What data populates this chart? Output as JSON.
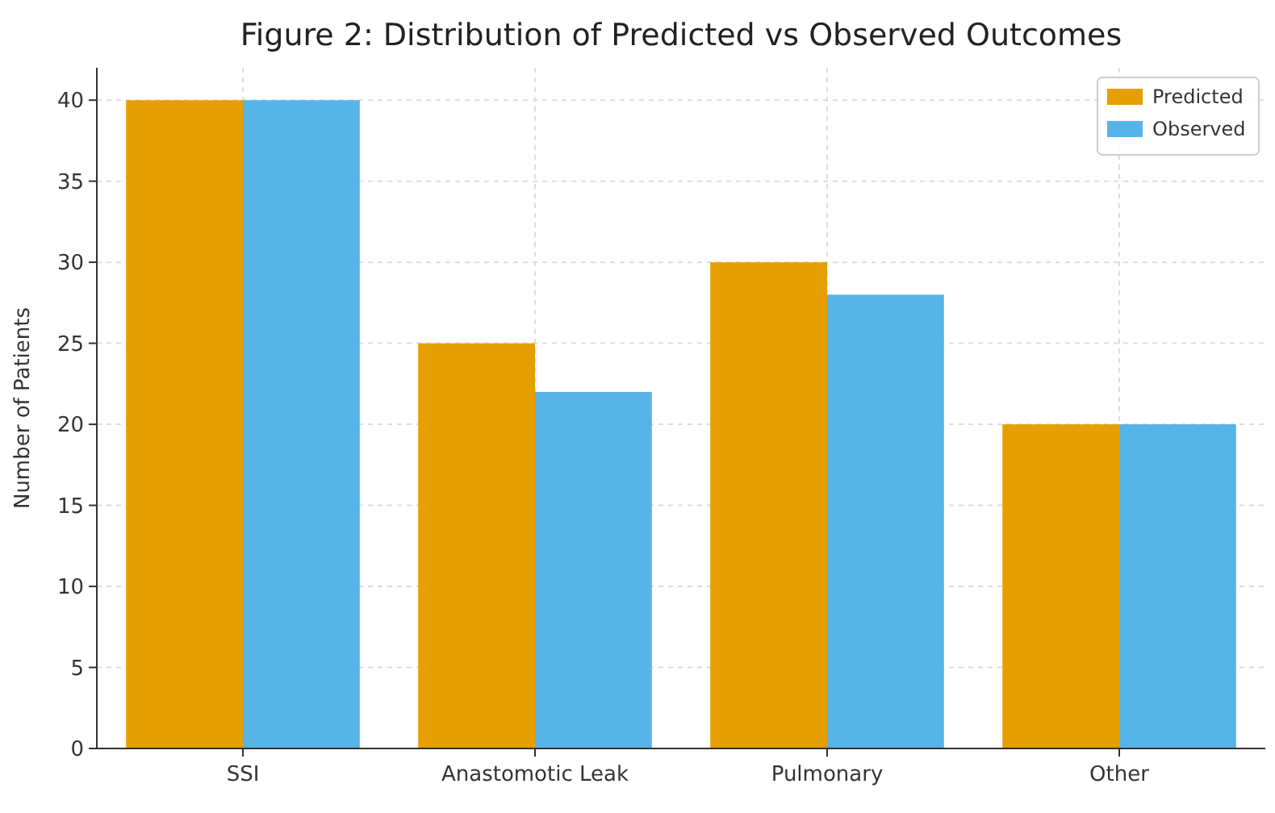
{
  "chart_data": {
    "type": "bar",
    "title": "Figure 2: Distribution of Predicted vs Observed Outcomes",
    "ylabel": "Number of Patients",
    "categories": [
      "SSI",
      "Anastomotic Leak",
      "Pulmonary",
      "Other"
    ],
    "series": [
      {
        "name": "Predicted",
        "color": "#e69f00",
        "values": [
          40,
          25,
          30,
          20
        ]
      },
      {
        "name": "Observed",
        "color": "#56b4e9",
        "values": [
          40,
          22,
          28,
          20
        ]
      }
    ],
    "ylim": [
      0,
      42
    ],
    "yticks": [
      0,
      5,
      10,
      15,
      20,
      25,
      30,
      35,
      40
    ],
    "grid": true,
    "legend": "top right"
  }
}
